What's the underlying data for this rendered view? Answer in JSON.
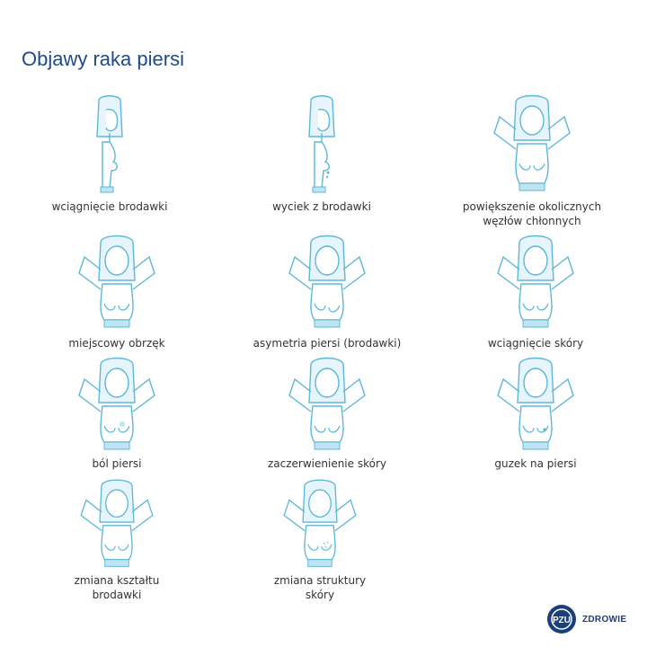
{
  "title": "Objawy raka piersi",
  "items": [
    {
      "label": "wciągnięcie brodawki",
      "pose": "side"
    },
    {
      "label": "wyciek z brodawki",
      "pose": "side"
    },
    {
      "label": "powiększenie okolicznych\nwęzłów chłonnych",
      "pose": "arms"
    },
    {
      "label": "miejscowy obrzęk",
      "pose": "arms"
    },
    {
      "label": "asymetria piersi (brodawki)",
      "pose": "arms"
    },
    {
      "label": "wciągnięcie skóry",
      "pose": "arms"
    },
    {
      "label": "ból piersi",
      "pose": "arms"
    },
    {
      "label": "zaczerwienienie skóry",
      "pose": "arms"
    },
    {
      "label": "guzek na piersi",
      "pose": "arms"
    },
    {
      "label": "zmiana kształtu\nbrodawki",
      "pose": "arms"
    },
    {
      "label": "zmiana struktury\nskóry",
      "pose": "arms"
    }
  ],
  "logo": {
    "mark": "PZU",
    "text": "ZDROWIE"
  },
  "colors": {
    "title": "#1f4a8a",
    "line": "#5bb8d8",
    "fill": "#e6f5fb",
    "accent": "#1a3f7a"
  }
}
